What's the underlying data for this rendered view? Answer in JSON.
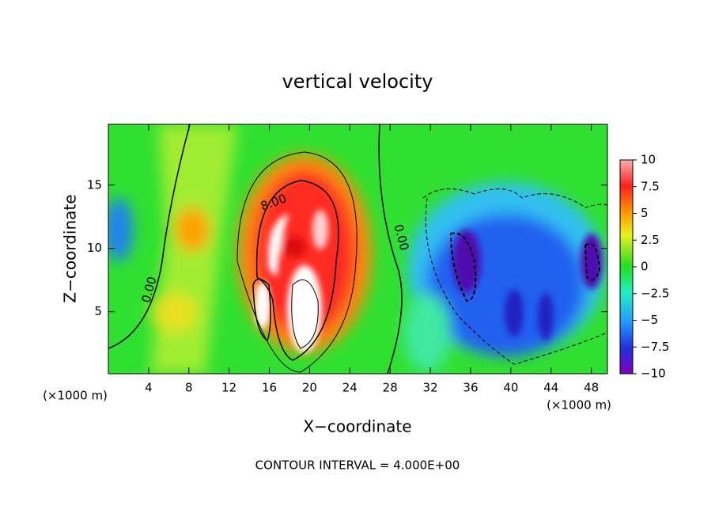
{
  "chart_data": {
    "type": "contour",
    "title": "vertical velocity",
    "x_label": "X−coordinate",
    "y_label": "Z−coordinate",
    "x_unit_labels": [
      "(×1000 m)",
      "(×1000 m)"
    ],
    "footer": "CONTOUR INTERVAL = 4.000E+00",
    "xlim": [
      0,
      49.6
    ],
    "xticks": [
      4,
      8,
      12,
      16,
      20,
      24,
      28,
      32,
      36,
      40,
      44,
      48
    ],
    "ylim": [
      0.1,
      19.8
    ],
    "yticks": [
      5,
      10,
      15
    ],
    "colorbar": {
      "lim": [
        -10,
        10
      ],
      "ticks": [
        10,
        7.5,
        5,
        2.5,
        0,
        {
          "value": -2.5,
          "label": "−2.5"
        },
        {
          "value": -5,
          "label": "−5"
        },
        {
          "value": -7.5,
          "label": "−7.5"
        },
        {
          "value": -10,
          "label": "−10"
        }
      ]
    },
    "contour_labels": [
      "8.00",
      "0.00",
      "0.00"
    ]
  }
}
